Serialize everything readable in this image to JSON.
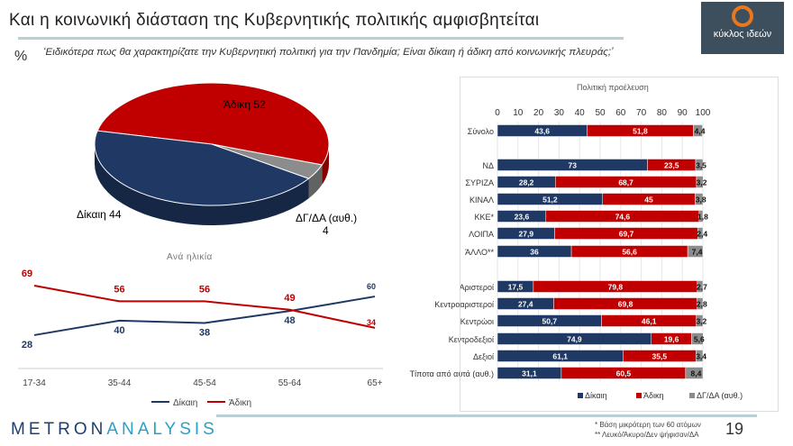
{
  "header": {
    "title": "Και η  κοινωνική διάσταση της Κυβερνητικής πολιτικής αμφισβητείται",
    "percent_symbol": "%",
    "question": "‘Ειδικότερα πως θα χαρακτηρίζατε την Κυβερνητική πολιτική για την Πανδημία; Είναι δίκαιη ή άδικη από κοινωνικής πλευράς;’",
    "logo_text": "κύκλος ιδεών"
  },
  "colors": {
    "dikaih": "#1f3864",
    "adikh": "#c00000",
    "dgda": "#8c8c8c"
  },
  "chart_data": [
    {
      "type": "pie",
      "slices": [
        {
          "label": "Άδικη",
          "value": 52,
          "text": "Άδικη 52"
        },
        {
          "label": "ΔΓ/ΔΑ (αυθ.)",
          "value": 4,
          "text": "ΔΓ/ΔΑ (αυθ.)",
          "text2": "4"
        },
        {
          "label": "Δίκαιη",
          "value": 44,
          "text": "Δίκαιη 44"
        }
      ]
    },
    {
      "type": "line",
      "title": "Ανά ηλικία",
      "categories": [
        "17-34",
        "35-44",
        "45-54",
        "55-64",
        "65+"
      ],
      "series": [
        {
          "name": "Δίκαιη",
          "values": [
            28,
            40,
            38,
            48,
            60
          ]
        },
        {
          "name": "Άδικη",
          "values": [
            69,
            56,
            56,
            49,
            34
          ]
        }
      ],
      "legend": [
        "Δίκαιη",
        "Άδικη"
      ]
    },
    {
      "type": "bar",
      "stacked": true,
      "horizontal": true,
      "title": "Πολιτική προέλευση",
      "xlim": [
        0,
        100
      ],
      "ticks": [
        "0",
        "10",
        "20",
        "30",
        "40",
        "50",
        "60",
        "70",
        "80",
        "90",
        "100"
      ],
      "series_names": [
        "Δίκαιη",
        "Άδικη",
        "ΔΓ/ΔΑ (αυθ.)"
      ],
      "rows": [
        {
          "label": "Σύνολο",
          "values": [
            43.6,
            51.8,
            4.4
          ],
          "text": [
            "43,6",
            "51,8",
            "4,4"
          ]
        },
        {
          "label": "ΝΔ",
          "values": [
            73,
            23.5,
            3.5
          ],
          "text": [
            "73",
            "23,5",
            "3,5"
          ]
        },
        {
          "label": "ΣΥΡΙΖΑ",
          "values": [
            28.2,
            68.7,
            3.2
          ],
          "text": [
            "28,2",
            "68,7",
            "3,2"
          ]
        },
        {
          "label": "ΚΙΝΑΛ",
          "values": [
            51.2,
            45,
            3.8
          ],
          "text": [
            "51,2",
            "45",
            "3,8"
          ]
        },
        {
          "label": "ΚΚΕ*",
          "values": [
            23.6,
            74.6,
            1.8
          ],
          "text": [
            "23,6",
            "74,6",
            "1,8"
          ]
        },
        {
          "label": "ΛΟΙΠΑ",
          "values": [
            27.9,
            69.7,
            2.4
          ],
          "text": [
            "27,9",
            "69,7",
            "2,4"
          ]
        },
        {
          "label": "ΆΛΛΟ**",
          "values": [
            36,
            56.6,
            7.4
          ],
          "text": [
            "36",
            "56,6",
            "7,4"
          ]
        },
        {
          "label": "Αριστεροί",
          "values": [
            17.5,
            79.8,
            2.7
          ],
          "text": [
            "17,5",
            "79,8",
            "2,7"
          ]
        },
        {
          "label": "Κεντροαριστεροί",
          "values": [
            27.4,
            69.8,
            2.8
          ],
          "text": [
            "27,4",
            "69,8",
            "2,8"
          ]
        },
        {
          "label": "Κεντρώοι",
          "values": [
            50.7,
            46.1,
            3.2
          ],
          "text": [
            "50,7",
            "46,1",
            "3,2"
          ]
        },
        {
          "label": "Κεντροδεξιοί",
          "values": [
            74.9,
            19.6,
            5.6
          ],
          "text": [
            "74,9",
            "19,6",
            "5,6"
          ]
        },
        {
          "label": "Δεξιοί",
          "values": [
            61.1,
            35.5,
            3.4
          ],
          "text": [
            "61,1",
            "35,5",
            "3,4"
          ]
        },
        {
          "label": "Τίποτα από αυτά (αυθ.)",
          "values": [
            31.1,
            60.5,
            8.4
          ],
          "text": [
            "31,1",
            "60,5",
            "8,4"
          ]
        }
      ]
    }
  ],
  "footer": {
    "brand_a": "METRON",
    "brand_b": "ANALYSIS",
    "note1": "*  Βάση μικρότερη των 60 ατόμων",
    "note2": "** Λευκό/Άκυρο/Δεν ψήφισαν/ΔΑ",
    "page": "19"
  }
}
